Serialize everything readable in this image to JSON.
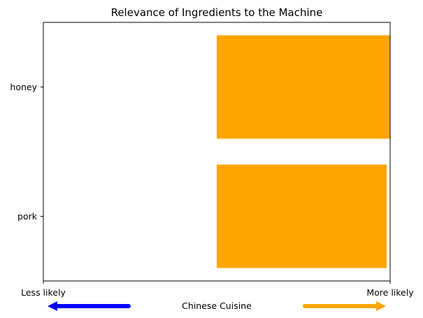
{
  "chart_data": {
    "type": "bar",
    "orientation": "horizontal",
    "title": "Relevance of Ingredients to the Machine",
    "categories": [
      "pork",
      "honey"
    ],
    "series": [
      {
        "values": [
          0.49,
          0.5
        ],
        "color": "#FFA500"
      }
    ],
    "xlim": [
      -0.5,
      0.5
    ],
    "xlabel": "Chinese Cuisine",
    "x_end_labels": {
      "left": "Less likely",
      "right": "More likely"
    },
    "arrows": {
      "left_color": "#0000FF",
      "right_color": "#FFA500"
    },
    "grid": false,
    "legend": "none"
  }
}
